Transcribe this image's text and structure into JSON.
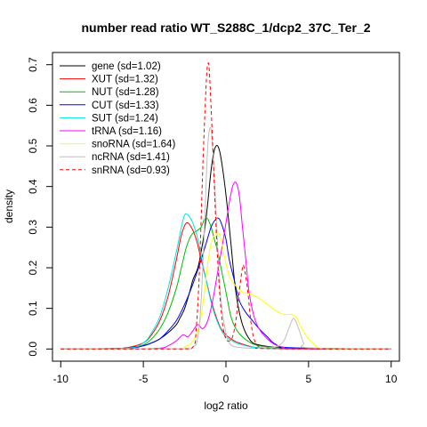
{
  "chart_data": {
    "type": "line",
    "title": "number read ratio WT_S288C_1/dcp2_37C_Ter_2",
    "xlabel": "log2 ratio",
    "ylabel": "density",
    "xlim": [
      -10.5,
      10.5
    ],
    "ylim": [
      -0.03,
      0.73
    ],
    "xticks": [
      -10,
      -5,
      0,
      5,
      10
    ],
    "yticks": [
      0.0,
      0.1,
      0.2,
      0.3,
      0.4,
      0.5,
      0.6,
      0.7
    ],
    "xtick_labels": [
      "-10",
      "-5",
      "0",
      "5",
      "10"
    ],
    "ytick_labels": [
      "0.0",
      "0.1",
      "0.2",
      "0.3",
      "0.4",
      "0.5",
      "0.6",
      "0.7"
    ],
    "grid": false,
    "legend_position": "top-left",
    "series": [
      {
        "name": "gene (sd=1.02)",
        "color": "#000000",
        "dash": false,
        "x": [
          -10,
          -7,
          -6,
          -5,
          -4.5,
          -4,
          -3.5,
          -3,
          -2.8,
          -2.5,
          -2.2,
          -2,
          -1.7,
          -1.5,
          -1.3,
          -1.1,
          -0.9,
          -0.7,
          -0.5,
          -0.3,
          0,
          0.3,
          0.6,
          1,
          1.5,
          2,
          3,
          4,
          6,
          10
        ],
        "y": [
          0,
          0,
          0.003,
          0.008,
          0.015,
          0.025,
          0.04,
          0.06,
          0.075,
          0.1,
          0.14,
          0.17,
          0.2,
          0.24,
          0.29,
          0.36,
          0.44,
          0.49,
          0.5,
          0.47,
          0.38,
          0.26,
          0.14,
          0.06,
          0.02,
          0.01,
          0.004,
          0.002,
          0,
          0
        ]
      },
      {
        "name": "XUT (sd=1.32)",
        "color": "#ff0000",
        "dash": false,
        "x": [
          -10,
          -7,
          -6,
          -5,
          -4.5,
          -4,
          -3.5,
          -3,
          -2.7,
          -2.4,
          -2.1,
          -1.8,
          -1.5,
          -1.2,
          -0.9,
          -0.6,
          -0.3,
          0,
          0.3,
          0.6,
          1,
          1.5,
          2,
          3,
          4,
          6,
          10
        ],
        "y": [
          0,
          0,
          0.003,
          0.015,
          0.035,
          0.07,
          0.13,
          0.22,
          0.28,
          0.31,
          0.3,
          0.27,
          0.22,
          0.17,
          0.12,
          0.08,
          0.05,
          0.035,
          0.025,
          0.018,
          0.012,
          0.006,
          0.003,
          0.001,
          0,
          0,
          0
        ]
      },
      {
        "name": "NUT (sd=1.28)",
        "color": "#00bb00",
        "dash": false,
        "x": [
          -10,
          -6,
          -5,
          -4.5,
          -4,
          -3.5,
          -3,
          -2.7,
          -2.4,
          -2.1,
          -1.8,
          -1.5,
          -1.3,
          -1.1,
          -0.9,
          -0.7,
          -0.5,
          -0.3,
          0,
          0.3,
          0.6,
          1,
          1.5,
          2,
          3,
          4,
          10
        ],
        "y": [
          0,
          0.002,
          0.01,
          0.025,
          0.05,
          0.09,
          0.15,
          0.2,
          0.25,
          0.28,
          0.29,
          0.3,
          0.32,
          0.32,
          0.3,
          0.27,
          0.24,
          0.2,
          0.14,
          0.08,
          0.05,
          0.03,
          0.015,
          0.008,
          0.003,
          0.001,
          0
        ]
      },
      {
        "name": "CUT (sd=1.33)",
        "color": "#0000ff",
        "dash": false,
        "x": [
          -10,
          -6,
          -5,
          -4.5,
          -4,
          -3.5,
          -3,
          -2.5,
          -2,
          -1.5,
          -1.2,
          -0.9,
          -0.6,
          -0.4,
          -0.2,
          0,
          0.2,
          0.5,
          0.8,
          1.2,
          1.6,
          2,
          2.5,
          3,
          4,
          10
        ],
        "y": [
          0,
          0.002,
          0.008,
          0.015,
          0.025,
          0.045,
          0.07,
          0.11,
          0.16,
          0.22,
          0.26,
          0.3,
          0.32,
          0.32,
          0.3,
          0.27,
          0.22,
          0.17,
          0.12,
          0.09,
          0.07,
          0.05,
          0.03,
          0.012,
          0.003,
          0
        ]
      },
      {
        "name": "SUT (sd=1.24)",
        "color": "#00e5e5",
        "dash": false,
        "x": [
          -10,
          -6,
          -5,
          -4.5,
          -4,
          -3.5,
          -3,
          -2.7,
          -2.5,
          -2.3,
          -2,
          -1.7,
          -1.4,
          -1.1,
          -0.8,
          -0.5,
          -0.2,
          0,
          0.3,
          0.6,
          1,
          1.5,
          2,
          3,
          10
        ],
        "y": [
          0,
          0.002,
          0.015,
          0.04,
          0.08,
          0.15,
          0.24,
          0.3,
          0.33,
          0.33,
          0.31,
          0.27,
          0.21,
          0.15,
          0.1,
          0.065,
          0.04,
          0.03,
          0.022,
          0.015,
          0.01,
          0.005,
          0.003,
          0.001,
          0
        ]
      },
      {
        "name": "tRNA (sd=1.16)",
        "color": "#ff00ff",
        "dash": false,
        "x": [
          -10,
          -6,
          -4,
          -3.5,
          -3,
          -2.6,
          -2.3,
          -2,
          -1.7,
          -1.4,
          -1.1,
          -0.8,
          -0.5,
          -0.2,
          0,
          0.2,
          0.4,
          0.6,
          0.8,
          1,
          1.2,
          1.4,
          1.7,
          2,
          2.5,
          3,
          3.5,
          4,
          10
        ],
        "y": [
          0,
          0,
          0.002,
          0.008,
          0.02,
          0.035,
          0.03,
          0.045,
          0.06,
          0.05,
          0.07,
          0.12,
          0.19,
          0.26,
          0.31,
          0.36,
          0.4,
          0.41,
          0.38,
          0.3,
          0.22,
          0.14,
          0.08,
          0.05,
          0.025,
          0.01,
          0.004,
          0.001,
          0
        ]
      },
      {
        "name": "snoRNA (sd=1.64)",
        "color": "#ffff00",
        "dash": false,
        "x": [
          -10,
          -3,
          -2.5,
          -2,
          -1.6,
          -1.3,
          -1.1,
          -0.9,
          -0.7,
          -0.5,
          -0.3,
          -0.1,
          0.2,
          0.5,
          1,
          1.5,
          2,
          2.5,
          3,
          3.5,
          4,
          4.3,
          4.6,
          5,
          5.5,
          6,
          10
        ],
        "y": [
          0,
          0.001,
          0.005,
          0.02,
          0.06,
          0.14,
          0.21,
          0.26,
          0.28,
          0.29,
          0.27,
          0.23,
          0.18,
          0.16,
          0.14,
          0.135,
          0.125,
          0.11,
          0.095,
          0.085,
          0.085,
          0.075,
          0.05,
          0.025,
          0.006,
          0.001,
          0
        ]
      },
      {
        "name": "ncRNA (sd=1.41)",
        "color": "#bebebe",
        "dash": false,
        "x": [
          -10,
          -3,
          -2,
          -1.7,
          -1.5,
          -1.3,
          -1.1,
          -0.9,
          -0.7,
          -0.5,
          -0.3,
          0,
          0.3,
          1,
          2,
          3,
          3.5,
          3.8,
          4.1,
          4.4,
          4.7,
          5,
          10
        ],
        "y": [
          0,
          0,
          0.005,
          0.03,
          0.12,
          0.3,
          0.5,
          0.54,
          0.42,
          0.25,
          0.12,
          0.04,
          0.01,
          0.003,
          0.002,
          0.005,
          0.02,
          0.05,
          0.075,
          0.05,
          0.015,
          0.003,
          0
        ]
      },
      {
        "name": "snRNA (sd=0.93)",
        "color": "#ff0000",
        "dash": true,
        "x": [
          -10,
          -3,
          -2,
          -1.8,
          -1.6,
          -1.4,
          -1.2,
          -1.1,
          -1,
          -0.8,
          -0.6,
          -0.4,
          -0.2,
          0,
          0.2,
          0.4,
          0.6,
          0.8,
          1,
          1.1,
          1.3,
          1.5,
          1.7,
          2,
          2.5,
          10
        ],
        "y": [
          0,
          0,
          0.005,
          0.05,
          0.2,
          0.45,
          0.65,
          0.7,
          0.68,
          0.5,
          0.3,
          0.15,
          0.06,
          0.025,
          0.02,
          0.03,
          0.07,
          0.14,
          0.2,
          0.2,
          0.15,
          0.07,
          0.025,
          0.005,
          0.001,
          0
        ]
      }
    ]
  }
}
